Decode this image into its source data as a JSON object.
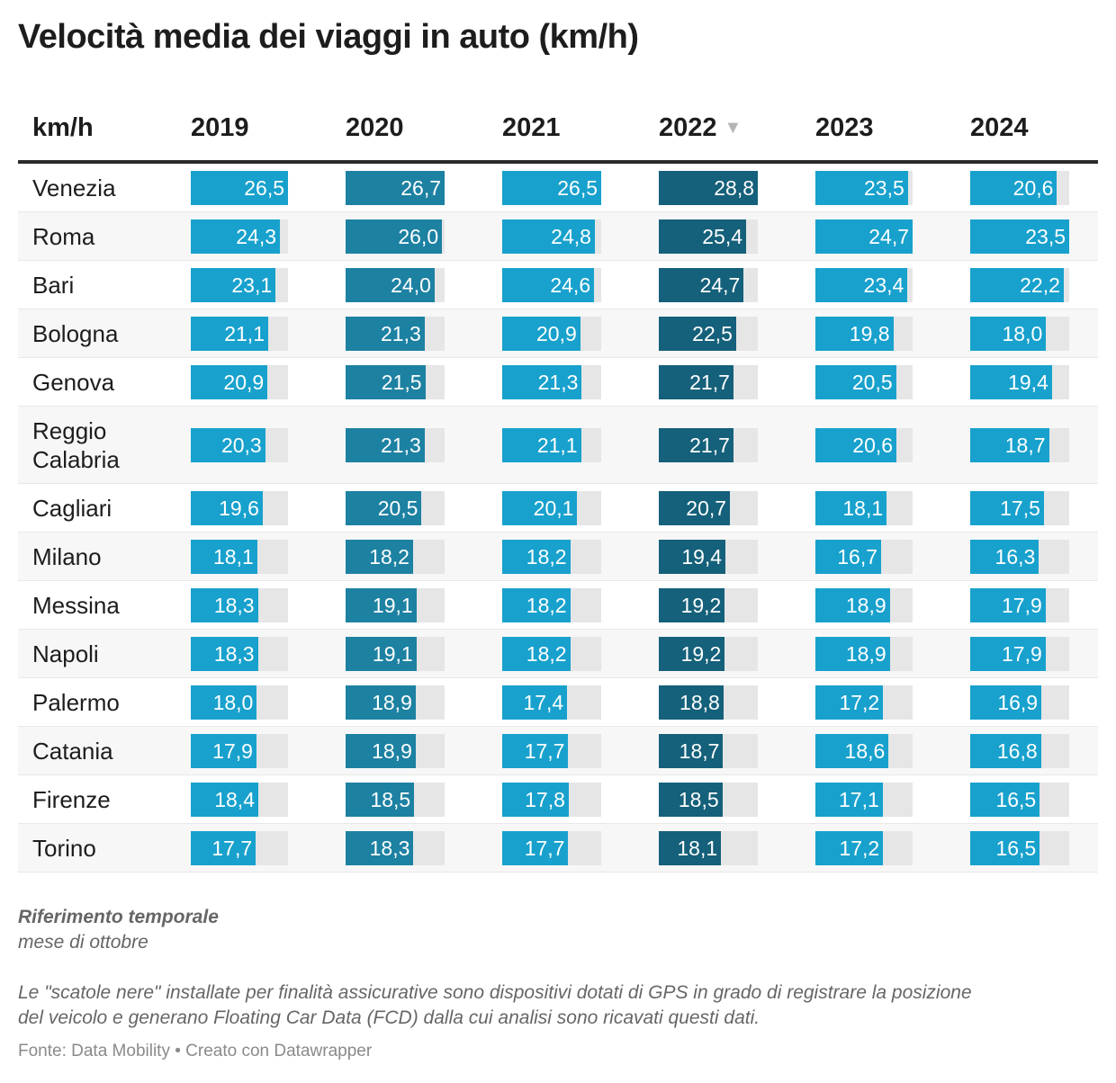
{
  "title": "Velocità media dei viaggi in auto (km/h)",
  "chart_data": {
    "type": "table",
    "columns": [
      "km/h",
      "2019",
      "2020",
      "2021",
      "2022",
      "2023",
      "2024"
    ],
    "sorted_column": "2022",
    "sort_icon": "triangle-down-icon",
    "colors": {
      "2019": "#18a1cd",
      "2020": "#1d81a2",
      "2021": "#18a1cd",
      "2022": "#15607a",
      "2023": "#18a1cd",
      "2024": "#18a1cd",
      "track": "#e6e6e6"
    },
    "rows": [
      {
        "city": "Venezia",
        "values": [
          "26,5",
          "26,7",
          "26,5",
          "28,8",
          "23,5",
          "20,6"
        ]
      },
      {
        "city": "Roma",
        "values": [
          "24,3",
          "26,0",
          "24,8",
          "25,4",
          "24,7",
          "23,5"
        ]
      },
      {
        "city": "Bari",
        "values": [
          "23,1",
          "24,0",
          "24,6",
          "24,7",
          "23,4",
          "22,2"
        ]
      },
      {
        "city": "Bologna",
        "values": [
          "21,1",
          "21,3",
          "20,9",
          "22,5",
          "19,8",
          "18,0"
        ]
      },
      {
        "city": "Genova",
        "values": [
          "20,9",
          "21,5",
          "21,3",
          "21,7",
          "20,5",
          "19,4"
        ]
      },
      {
        "city": "Reggio Calabria",
        "values": [
          "20,3",
          "21,3",
          "21,1",
          "21,7",
          "20,6",
          "18,7"
        ]
      },
      {
        "city": "Cagliari",
        "values": [
          "19,6",
          "20,5",
          "20,1",
          "20,7",
          "18,1",
          "17,5"
        ]
      },
      {
        "city": "Milano",
        "values": [
          "18,1",
          "18,2",
          "18,2",
          "19,4",
          "16,7",
          "16,3"
        ]
      },
      {
        "city": "Messina",
        "values": [
          "18,3",
          "19,1",
          "18,2",
          "19,2",
          "18,9",
          "17,9"
        ]
      },
      {
        "city": "Napoli",
        "values": [
          "18,3",
          "19,1",
          "18,2",
          "19,2",
          "18,9",
          "17,9"
        ]
      },
      {
        "city": "Palermo",
        "values": [
          "18,0",
          "18,9",
          "17,4",
          "18,8",
          "17,2",
          "16,9"
        ]
      },
      {
        "city": "Catania",
        "values": [
          "17,9",
          "18,9",
          "17,7",
          "18,7",
          "18,6",
          "16,8"
        ]
      },
      {
        "city": "Firenze",
        "values": [
          "18,4",
          "18,5",
          "17,8",
          "18,5",
          "17,1",
          "16,5"
        ]
      },
      {
        "city": "Torino",
        "values": [
          "17,7",
          "18,3",
          "17,7",
          "18,1",
          "17,2",
          "16,5"
        ]
      }
    ]
  },
  "notes": {
    "ref_title": "Riferimento temporale",
    "ref_value": "mese di ottobre",
    "description_1": "Le \"scatole nere\" installate per finalità assicurative sono dispositivi dotati di GPS in grado di registrare la posizione",
    "description_2": "del veicolo e generano Floating Car Data (FCD) dalla cui analisi sono ricavati questi dati."
  },
  "footer": "Fonte: Data Mobility • Creato con Datawrapper"
}
